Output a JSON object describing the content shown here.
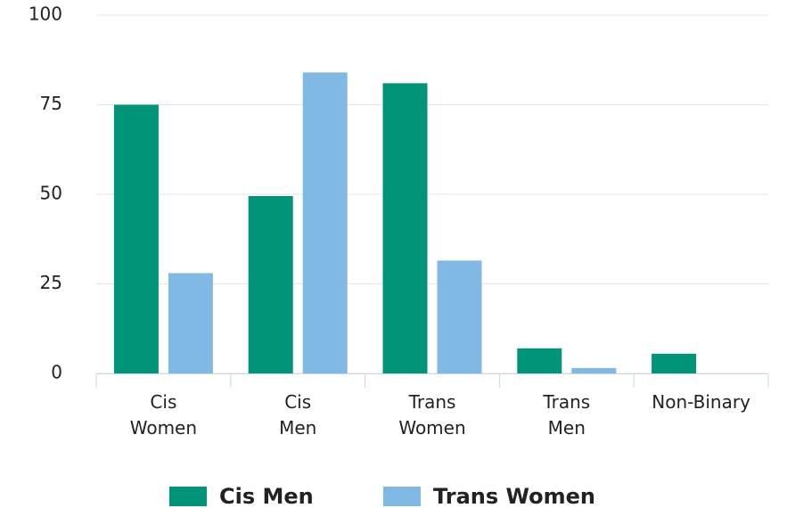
{
  "chart_data": {
    "type": "bar",
    "categories": [
      "Cis Women",
      "Cis Men",
      "Trans Women",
      "Trans Men",
      "Non-Binary"
    ],
    "series": [
      {
        "name": "Cis Men",
        "color": "#009478",
        "values": [
          75,
          49.5,
          81,
          7,
          5.5
        ]
      },
      {
        "name": "Trans Women",
        "color": "#7fb9e4",
        "values": [
          28,
          84,
          31.5,
          1.5,
          0
        ]
      }
    ],
    "ylim": [
      0,
      100
    ],
    "yticks": [
      0,
      25,
      50,
      75,
      100
    ],
    "grid": true,
    "legend": "bottom"
  }
}
